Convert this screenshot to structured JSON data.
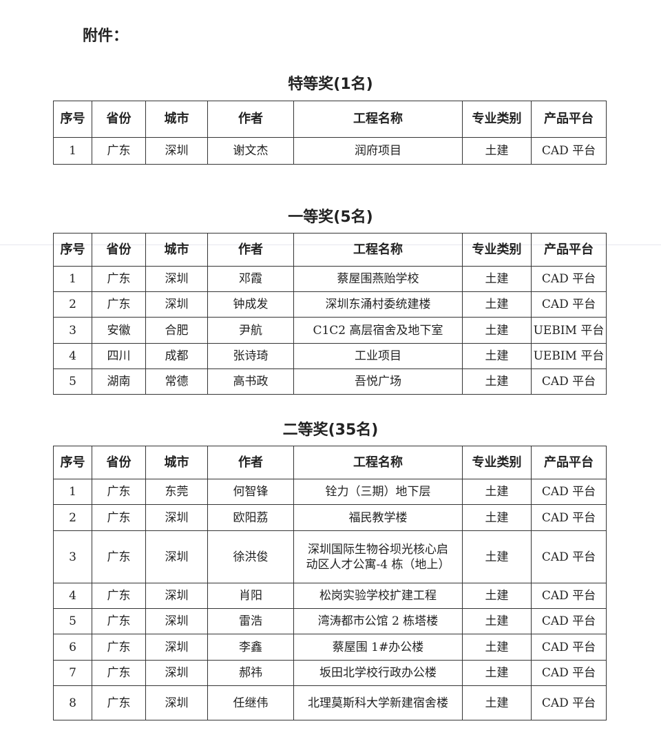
{
  "attachment_label": "附件：",
  "headers": [
    "序号",
    "省份",
    "城市",
    "作者",
    "工程名称",
    "专业类别",
    "产品平台"
  ],
  "sections": [
    {
      "title": "特等奖(1名)",
      "rows": [
        [
          "1",
          "广东",
          "深圳",
          "谢文杰",
          "润府项目",
          "土建",
          "CAD 平台"
        ]
      ]
    },
    {
      "title": "一等奖(5名)",
      "rows": [
        [
          "1",
          "广东",
          "深圳",
          "邓霞",
          "蔡屋围燕贻学校",
          "土建",
          "CAD 平台"
        ],
        [
          "2",
          "广东",
          "深圳",
          "钟成发",
          "深圳东涌村委统建楼",
          "土建",
          "CAD 平台"
        ],
        [
          "3",
          "安徽",
          "合肥",
          "尹航",
          "C1C2 高层宿舍及地下室",
          "土建",
          "UEBIM 平台"
        ],
        [
          "4",
          "四川",
          "成都",
          "张诗琦",
          "工业项目",
          "土建",
          "UEBIM 平台"
        ],
        [
          "5",
          "湖南",
          "常德",
          "高书政",
          "吾悦广场",
          "土建",
          "CAD 平台"
        ]
      ]
    },
    {
      "title": "二等奖(35名)",
      "rows": [
        [
          "1",
          "广东",
          "东莞",
          "何智锋",
          "铨力（三期）地下层",
          "土建",
          "CAD 平台"
        ],
        [
          "2",
          "广东",
          "深圳",
          "欧阳荔",
          "福民教学楼",
          "土建",
          "CAD 平台"
        ],
        [
          "3",
          "广东",
          "深圳",
          "徐洪俊",
          "深圳国际生物谷坝光核心启动区人才公寓-4 栋（地上）",
          "土建",
          "CAD 平台"
        ],
        [
          "4",
          "广东",
          "深圳",
          "肖阳",
          "松岗实验学校扩建工程",
          "土建",
          "CAD 平台"
        ],
        [
          "5",
          "广东",
          "深圳",
          "雷浩",
          "湾涛都市公馆 2 栋塔楼",
          "土建",
          "CAD 平台"
        ],
        [
          "6",
          "广东",
          "深圳",
          "李鑫",
          "蔡屋围 1#办公楼",
          "土建",
          "CAD 平台"
        ],
        [
          "7",
          "广东",
          "深圳",
          "郝祎",
          "坂田北学校行政办公楼",
          "土建",
          "CAD 平台"
        ],
        [
          "8",
          "广东",
          "深圳",
          "任继伟",
          "北理莫斯科大学新建宿舍楼",
          "土建",
          "CAD 平台"
        ]
      ]
    }
  ]
}
